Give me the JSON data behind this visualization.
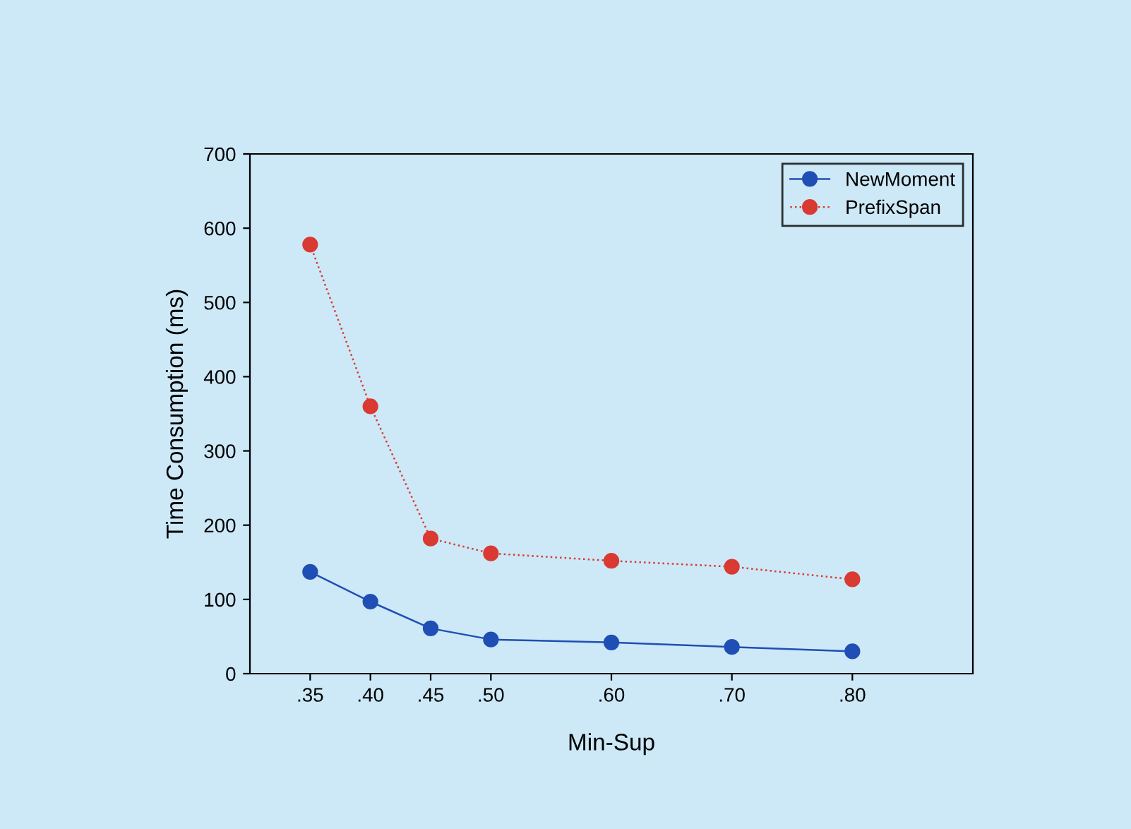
{
  "chart_data": {
    "type": "line",
    "xlabel": "Min-Sup",
    "ylabel": "Time Consumption (ms)",
    "x": [
      0.35,
      0.4,
      0.45,
      0.5,
      0.6,
      0.7,
      0.8
    ],
    "series": [
      {
        "name": "NewMoment",
        "color": "#1f4fb4",
        "line_style": "solid",
        "values": [
          137,
          97,
          61,
          46,
          42,
          36,
          30
        ]
      },
      {
        "name": "PrefixSpan",
        "color": "#d93a32",
        "line_style": "dotted",
        "values": [
          578,
          360,
          182,
          162,
          152,
          144,
          127
        ]
      }
    ],
    "xlim": [
      0.3,
      0.9
    ],
    "xticks": [
      {
        "value": 0.35,
        "label": ".35"
      },
      {
        "value": 0.4,
        "label": ".40"
      },
      {
        "value": 0.45,
        "label": ".45"
      },
      {
        "value": 0.5,
        "label": ".50"
      },
      {
        "value": 0.6,
        "label": ".60"
      },
      {
        "value": 0.7,
        "label": ".70"
      },
      {
        "value": 0.8,
        "label": ".80"
      }
    ],
    "ylim": [
      0,
      700
    ],
    "yticks": [
      0,
      100,
      200,
      300,
      400,
      500,
      600,
      700
    ],
    "marker": "circle",
    "legend": "top right",
    "grid": false
  }
}
